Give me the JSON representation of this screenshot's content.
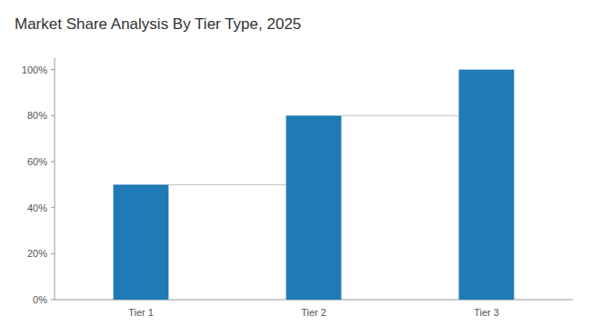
{
  "chart_data": {
    "type": "bar",
    "title": "Market Share Analysis By Tier Type, 2025",
    "categories": [
      "Tier 1",
      "Tier 2",
      "Tier 3"
    ],
    "values": [
      50,
      80,
      100
    ],
    "color": "#1f7ab5",
    "ylim": [
      0,
      105
    ],
    "yticks": [
      {
        "value": 0,
        "label": "0%"
      },
      {
        "value": 20,
        "label": "20%"
      },
      {
        "value": 40,
        "label": "40%"
      },
      {
        "value": 60,
        "label": "60%"
      },
      {
        "value": 80,
        "label": "80%"
      },
      {
        "value": 100,
        "label": "100%"
      }
    ],
    "grid": false
  }
}
